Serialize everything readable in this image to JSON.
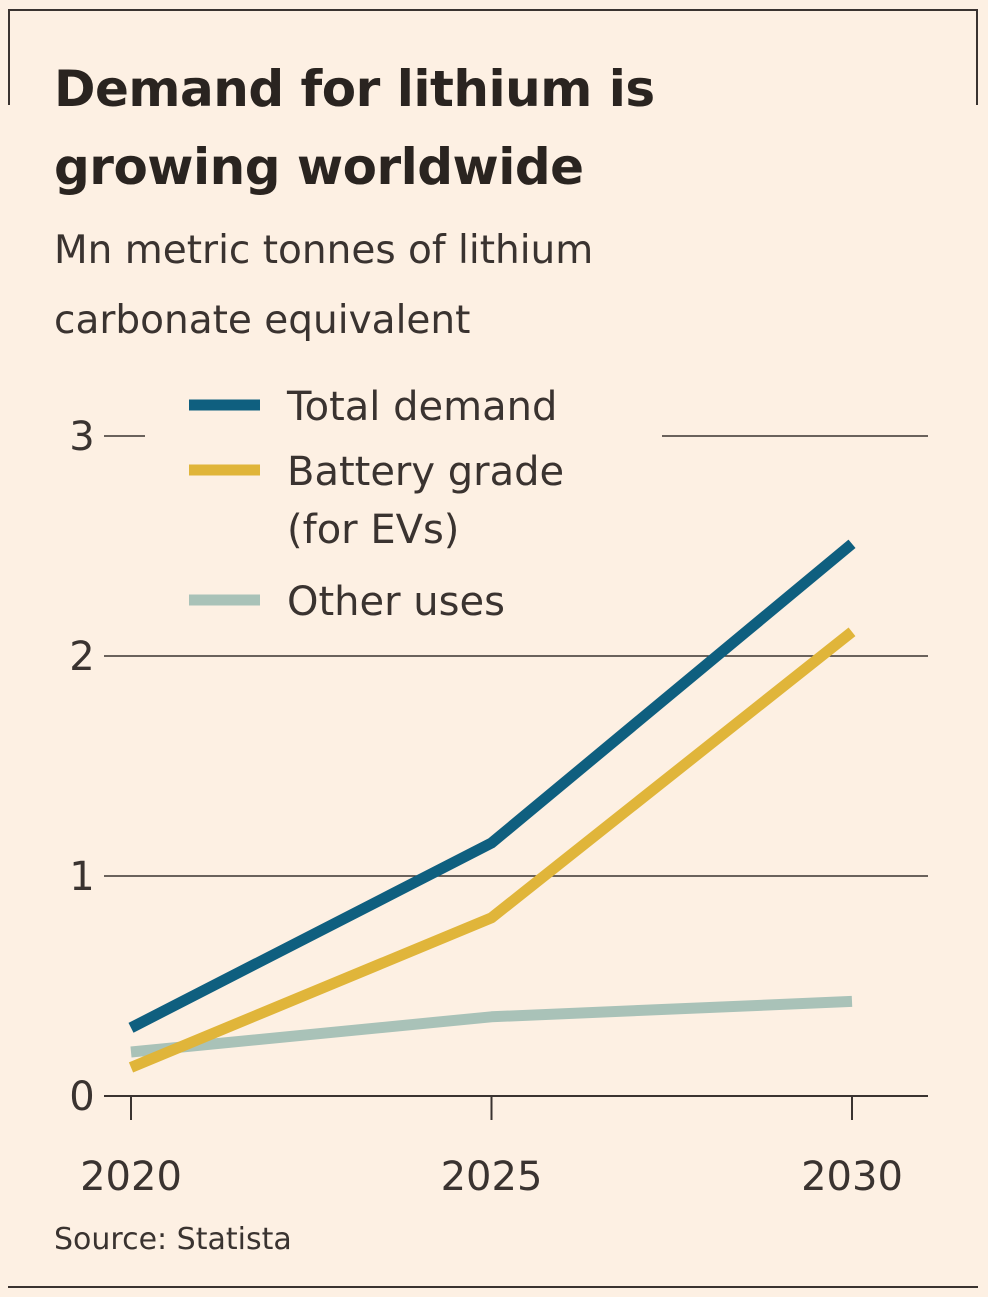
{
  "chart_data": {
    "type": "line",
    "title": "Demand for lithium is growing worldwide",
    "subtitle": "Mn metric tonnes of lithium carbonate equivalent",
    "source": "Source: Statista",
    "x": [
      2020,
      2025,
      2030
    ],
    "x_tick_labels": [
      "2020",
      "2025",
      "2030"
    ],
    "y_ticks": [
      0,
      1,
      2,
      3
    ],
    "y_tick_labels": [
      "0",
      "1",
      "2",
      "3"
    ],
    "ylim": [
      0,
      3
    ],
    "grid": true,
    "legend_placement": "top-left",
    "series": [
      {
        "name": "Total demand",
        "color": "#0f5f7f",
        "values": [
          0.31,
          1.15,
          2.51
        ]
      },
      {
        "name": "Battery grade (for EVs)",
        "legend_lines": [
          "Battery grade",
          "(for EVs)"
        ],
        "color": "#e0b53a",
        "values": [
          0.13,
          0.81,
          2.11
        ]
      },
      {
        "name": "Other uses",
        "color": "#a9c2b8",
        "values": [
          0.2,
          0.36,
          0.43
        ]
      }
    ]
  }
}
